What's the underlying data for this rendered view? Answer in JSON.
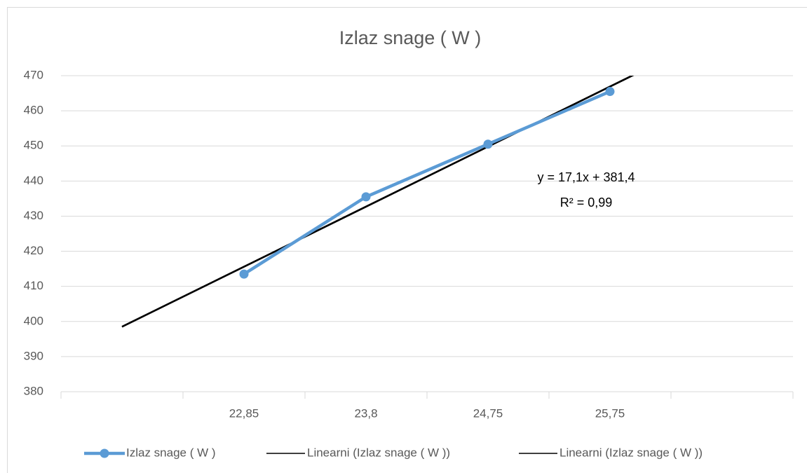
{
  "chart_data": {
    "type": "line",
    "title": "Izlaz snage ( W )",
    "categories": [
      null,
      "22,85",
      "23,8",
      "24,75",
      "25,75",
      null
    ],
    "series": [
      {
        "name": "Izlaz snage ( W )",
        "color": "#5b9bd5",
        "values": [
          null,
          413.5,
          435.5,
          450.5,
          465.5,
          null
        ]
      }
    ],
    "trendlines": [
      {
        "name": "Linearni (Izlaz snage ( W ))",
        "color": "#000000",
        "slope": 17.1,
        "intercept": 381.4,
        "equation_label": "y = 17,1x + 381,4",
        "r_squared": 0.99,
        "r_squared_label": "R² = 0,99"
      },
      {
        "name": "Linearni (Izlaz snage ( W ))",
        "color": "#000000",
        "slope": 17.1,
        "intercept": 381.4
      }
    ],
    "ylim": [
      380,
      470
    ],
    "yticks": [
      380,
      390,
      400,
      410,
      420,
      430,
      440,
      450,
      460,
      470
    ],
    "grid": true,
    "legend": "bottom"
  }
}
